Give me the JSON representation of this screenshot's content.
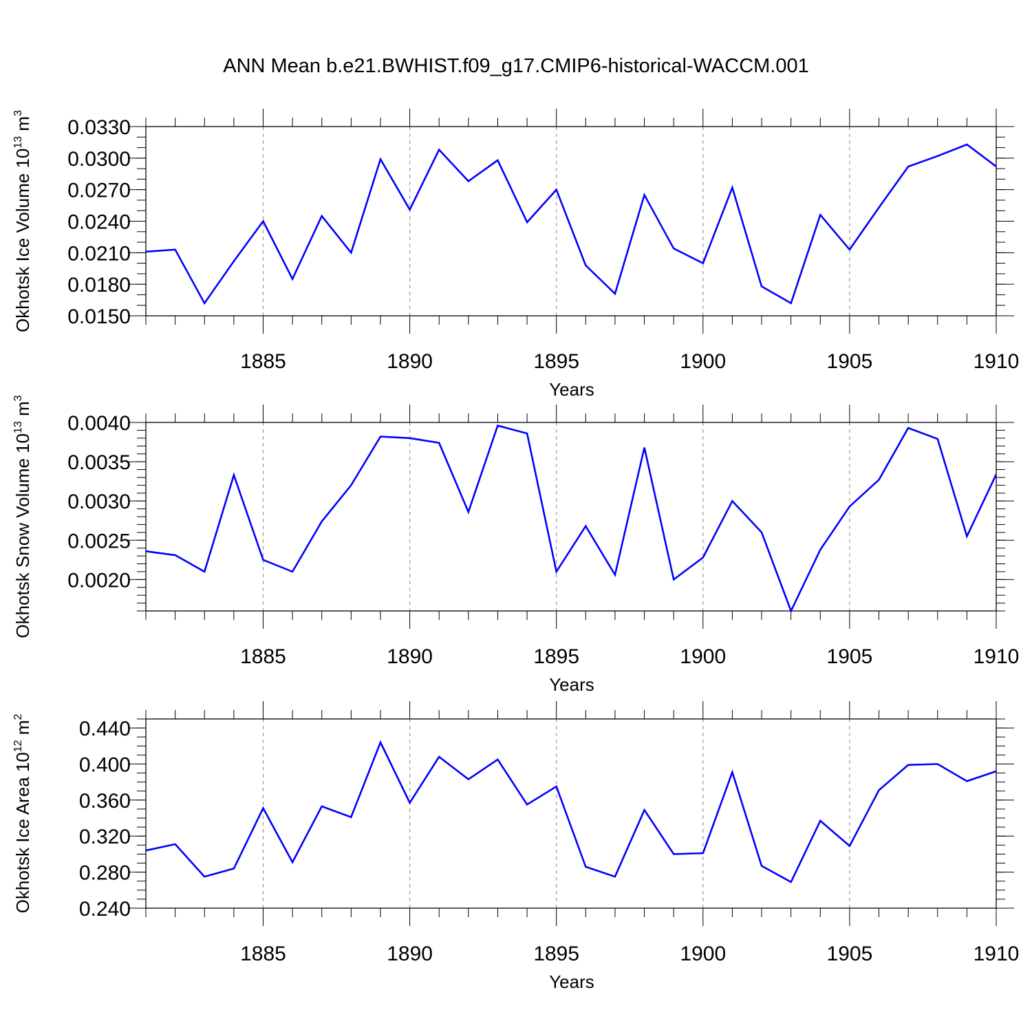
{
  "title": "ANN Mean b.e21.BWHIST.f09_g17.CMIP6-historical-WACCM.001",
  "line_color": "#0000ff",
  "chart_data": [
    {
      "type": "line",
      "ylabel": "Okhotsk Ice Volume 10",
      "ylabel_exp": "13",
      "ylabel_unit": " m",
      "ylabel_unit_exp": "3",
      "xlabel": "Years",
      "xlim": [
        1881,
        1910
      ],
      "ylim": [
        0.015,
        0.033
      ],
      "yticks": [
        0.015,
        0.018,
        0.021,
        0.024,
        0.027,
        0.03,
        0.033
      ],
      "ytick_labels": [
        "0.0150",
        "0.0180",
        "0.0210",
        "0.0240",
        "0.0270",
        "0.0300",
        "0.0330"
      ],
      "yminor_step": 0.001,
      "xticks": [
        1885,
        1890,
        1895,
        1900,
        1905,
        1910
      ],
      "xtick_labels": [
        "1885",
        "1890",
        "1895",
        "1900",
        "1905",
        "1910"
      ],
      "series": [
        {
          "x": [
            1881,
            1882,
            1883,
            1884,
            1885,
            1886,
            1887,
            1888,
            1889,
            1890,
            1891,
            1892,
            1893,
            1894,
            1895,
            1896,
            1897,
            1898,
            1899,
            1900,
            1901,
            1902,
            1903,
            1904,
            1905,
            1906,
            1907,
            1908,
            1909,
            1910
          ],
          "values": [
            0.0211,
            0.0213,
            0.0162,
            0.0202,
            0.024,
            0.0185,
            0.0245,
            0.021,
            0.0299,
            0.0251,
            0.0308,
            0.0278,
            0.0298,
            0.0239,
            0.027,
            0.0198,
            0.0171,
            0.0265,
            0.0214,
            0.02,
            0.0272,
            0.0178,
            0.0162,
            0.0246,
            0.0213,
            0.0253,
            0.0292,
            0.0302,
            0.0313,
            0.0292
          ]
        }
      ]
    },
    {
      "type": "line",
      "ylabel": "Okhotsk Snow Volume 10",
      "ylabel_exp": "13",
      "ylabel_unit": " m",
      "ylabel_unit_exp": "3",
      "xlabel": "Years",
      "xlim": [
        1881,
        1910
      ],
      "ylim": [
        0.0016,
        0.004
      ],
      "yticks": [
        0.002,
        0.0025,
        0.003,
        0.0035,
        0.004
      ],
      "ytick_labels": [
        "0.0020",
        "0.0025",
        "0.0030",
        "0.0035",
        "0.0040"
      ],
      "yminor_step": 0.0001,
      "xticks": [
        1885,
        1890,
        1895,
        1900,
        1905,
        1910
      ],
      "xtick_labels": [
        "1885",
        "1890",
        "1895",
        "1900",
        "1905",
        "1910"
      ],
      "series": [
        {
          "x": [
            1881,
            1882,
            1883,
            1884,
            1885,
            1886,
            1887,
            1888,
            1889,
            1890,
            1891,
            1892,
            1893,
            1894,
            1895,
            1896,
            1897,
            1898,
            1899,
            1900,
            1901,
            1902,
            1903,
            1904,
            1905,
            1906,
            1907,
            1908,
            1909,
            1910
          ],
          "values": [
            0.00236,
            0.00231,
            0.0021,
            0.00333,
            0.00225,
            0.0021,
            0.00274,
            0.0032,
            0.00382,
            0.0038,
            0.00374,
            0.00286,
            0.00396,
            0.00386,
            0.0021,
            0.00268,
            0.00206,
            0.00368,
            0.002,
            0.00228,
            0.003,
            0.0026,
            0.0016,
            0.00238,
            0.00293,
            0.00327,
            0.00393,
            0.00379,
            0.00255,
            0.00334
          ]
        }
      ]
    },
    {
      "type": "line",
      "ylabel": "Okhotsk Ice Area 10",
      "ylabel_exp": "12",
      "ylabel_unit": " m",
      "ylabel_unit_exp": "2",
      "xlabel": "Years",
      "xlim": [
        1881,
        1910
      ],
      "ylim": [
        0.24,
        0.45
      ],
      "yticks": [
        0.24,
        0.28,
        0.32,
        0.36,
        0.4,
        0.44
      ],
      "ytick_labels": [
        "0.240",
        "0.280",
        "0.320",
        "0.360",
        "0.400",
        "0.440"
      ],
      "yminor_step": 0.01,
      "xticks": [
        1885,
        1890,
        1895,
        1900,
        1905,
        1910
      ],
      "xtick_labels": [
        "1885",
        "1890",
        "1895",
        "1900",
        "1905",
        "1910"
      ],
      "series": [
        {
          "x": [
            1881,
            1882,
            1883,
            1884,
            1885,
            1886,
            1887,
            1888,
            1889,
            1890,
            1891,
            1892,
            1893,
            1894,
            1895,
            1896,
            1897,
            1898,
            1899,
            1900,
            1901,
            1902,
            1903,
            1904,
            1905,
            1906,
            1907,
            1908,
            1909,
            1910
          ],
          "values": [
            0.304,
            0.311,
            0.275,
            0.284,
            0.351,
            0.291,
            0.353,
            0.341,
            0.424,
            0.357,
            0.408,
            0.383,
            0.405,
            0.355,
            0.375,
            0.286,
            0.275,
            0.349,
            0.3,
            0.301,
            0.391,
            0.287,
            0.269,
            0.337,
            0.309,
            0.371,
            0.399,
            0.4,
            0.381,
            0.392
          ]
        }
      ]
    }
  ]
}
